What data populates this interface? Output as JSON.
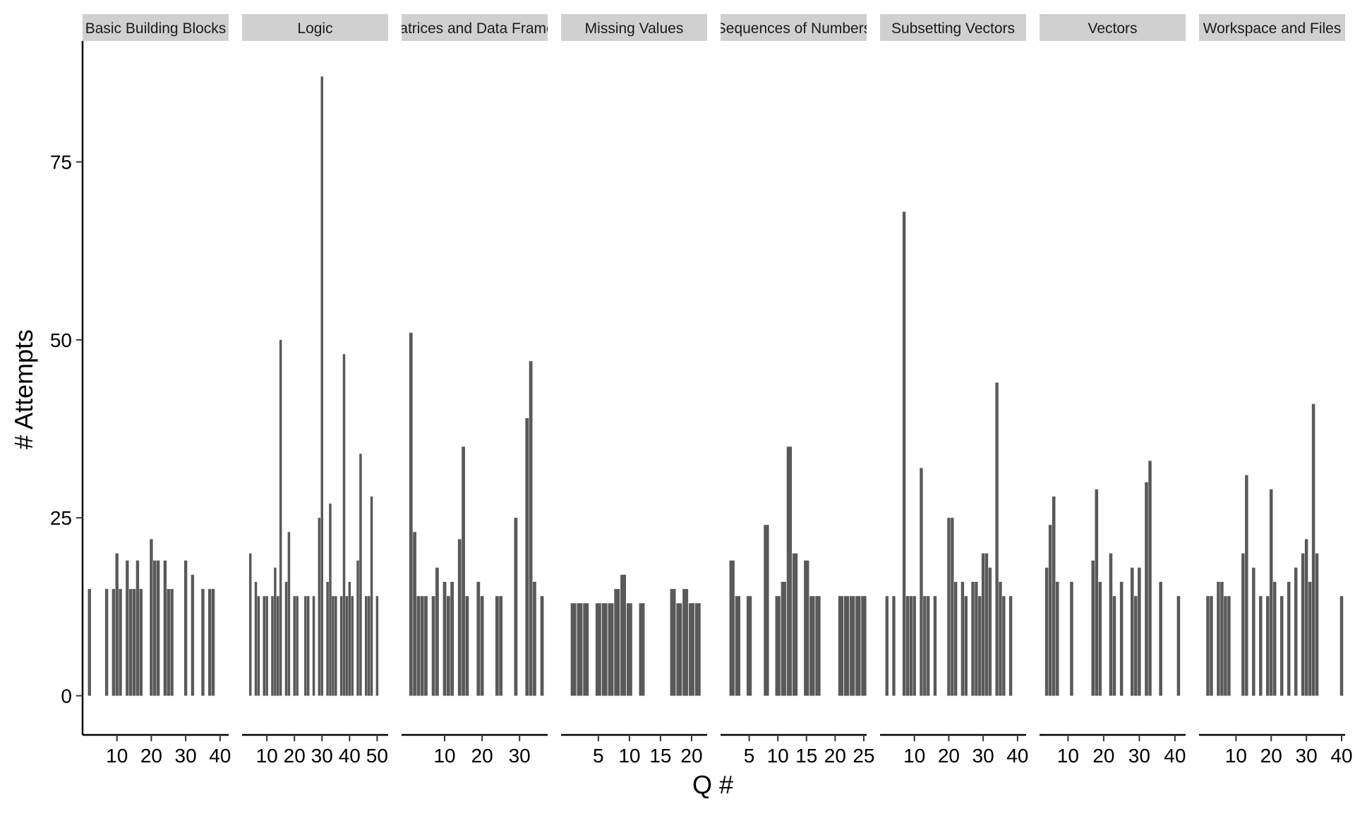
{
  "chart_data": {
    "type": "bar",
    "xlabel": "Q #",
    "ylabel": "# Attempts",
    "ylim": [
      -5.5,
      92
    ],
    "y_ticks": [
      0,
      25,
      50,
      75
    ],
    "bar_color": "#595959",
    "strip_color": "#d0d0d0",
    "facets": [
      {
        "label": "Basic Building Blocks",
        "xlim": [
          0,
          42.5
        ],
        "x_ticks": [
          10,
          20,
          30,
          40
        ],
        "bars": [
          {
            "x": 2,
            "y": 15
          },
          {
            "x": 7,
            "y": 15
          },
          {
            "x": 9,
            "y": 15
          },
          {
            "x": 10,
            "y": 20
          },
          {
            "x": 11,
            "y": 15
          },
          {
            "x": 13,
            "y": 19
          },
          {
            "x": 14,
            "y": 15
          },
          {
            "x": 15,
            "y": 15
          },
          {
            "x": 16,
            "y": 19
          },
          {
            "x": 17,
            "y": 15
          },
          {
            "x": 20,
            "y": 22
          },
          {
            "x": 21,
            "y": 19
          },
          {
            "x": 22,
            "y": 19
          },
          {
            "x": 24,
            "y": 19
          },
          {
            "x": 25,
            "y": 15
          },
          {
            "x": 26,
            "y": 15
          },
          {
            "x": 30,
            "y": 19
          },
          {
            "x": 32,
            "y": 17
          },
          {
            "x": 35,
            "y": 15
          },
          {
            "x": 37,
            "y": 15
          },
          {
            "x": 38,
            "y": 15
          }
        ]
      },
      {
        "label": "Logic",
        "xlim": [
          1,
          54
        ],
        "x_ticks": [
          10,
          20,
          30,
          40,
          50
        ],
        "bars": [
          {
            "x": 4,
            "y": 20
          },
          {
            "x": 6,
            "y": 16
          },
          {
            "x": 7,
            "y": 14
          },
          {
            "x": 9,
            "y": 14
          },
          {
            "x": 10,
            "y": 14
          },
          {
            "x": 12,
            "y": 14
          },
          {
            "x": 13,
            "y": 18
          },
          {
            "x": 14,
            "y": 14
          },
          {
            "x": 15,
            "y": 50
          },
          {
            "x": 17,
            "y": 16
          },
          {
            "x": 18,
            "y": 23
          },
          {
            "x": 20,
            "y": 14
          },
          {
            "x": 21,
            "y": 14
          },
          {
            "x": 24,
            "y": 14
          },
          {
            "x": 25,
            "y": 14
          },
          {
            "x": 27,
            "y": 14
          },
          {
            "x": 29,
            "y": 25
          },
          {
            "x": 30,
            "y": 87
          },
          {
            "x": 32,
            "y": 16
          },
          {
            "x": 33,
            "y": 27
          },
          {
            "x": 34,
            "y": 14
          },
          {
            "x": 35,
            "y": 14
          },
          {
            "x": 37,
            "y": 14
          },
          {
            "x": 38,
            "y": 48
          },
          {
            "x": 39,
            "y": 14
          },
          {
            "x": 40,
            "y": 16
          },
          {
            "x": 41,
            "y": 14
          },
          {
            "x": 43,
            "y": 19
          },
          {
            "x": 44,
            "y": 34
          },
          {
            "x": 46,
            "y": 14
          },
          {
            "x": 47,
            "y": 14
          },
          {
            "x": 48,
            "y": 28
          },
          {
            "x": 50,
            "y": 14
          }
        ]
      },
      {
        "label": "Matrices and Data Frames",
        "xlim": [
          -1.5,
          37.5
        ],
        "x_ticks": [
          10,
          20,
          30
        ],
        "bars": [
          {
            "x": 1,
            "y": 51
          },
          {
            "x": 2,
            "y": 23
          },
          {
            "x": 3,
            "y": 14
          },
          {
            "x": 4,
            "y": 14
          },
          {
            "x": 5,
            "y": 14
          },
          {
            "x": 7,
            "y": 14
          },
          {
            "x": 8,
            "y": 18
          },
          {
            "x": 10,
            "y": 16
          },
          {
            "x": 11,
            "y": 14
          },
          {
            "x": 12,
            "y": 16
          },
          {
            "x": 14,
            "y": 22
          },
          {
            "x": 15,
            "y": 35
          },
          {
            "x": 16,
            "y": 14
          },
          {
            "x": 19,
            "y": 16
          },
          {
            "x": 20,
            "y": 14
          },
          {
            "x": 24,
            "y": 14
          },
          {
            "x": 25,
            "y": 14
          },
          {
            "x": 29,
            "y": 25
          },
          {
            "x": 32,
            "y": 39
          },
          {
            "x": 33,
            "y": 47
          },
          {
            "x": 34,
            "y": 16
          },
          {
            "x": 36,
            "y": 14
          }
        ]
      },
      {
        "label": "Missing Values",
        "xlim": [
          -1,
          22.5
        ],
        "x_ticks": [
          5,
          10,
          15,
          20
        ],
        "bars": [
          {
            "x": 1,
            "y": 13
          },
          {
            "x": 2,
            "y": 13
          },
          {
            "x": 3,
            "y": 13
          },
          {
            "x": 5,
            "y": 13
          },
          {
            "x": 6,
            "y": 13
          },
          {
            "x": 7,
            "y": 13
          },
          {
            "x": 8,
            "y": 15
          },
          {
            "x": 9,
            "y": 17
          },
          {
            "x": 10,
            "y": 13
          },
          {
            "x": 12,
            "y": 13
          },
          {
            "x": 17,
            "y": 15
          },
          {
            "x": 18,
            "y": 13
          },
          {
            "x": 19,
            "y": 15
          },
          {
            "x": 20,
            "y": 13
          },
          {
            "x": 21,
            "y": 13
          }
        ]
      },
      {
        "label": "Sequences of Numbers",
        "xlim": [
          0,
          25.5
        ],
        "x_ticks": [
          5,
          10,
          15,
          20,
          25
        ],
        "bars": [
          {
            "x": 2,
            "y": 19
          },
          {
            "x": 3,
            "y": 14
          },
          {
            "x": 5,
            "y": 14
          },
          {
            "x": 8,
            "y": 24
          },
          {
            "x": 10,
            "y": 14
          },
          {
            "x": 11,
            "y": 16
          },
          {
            "x": 12,
            "y": 35
          },
          {
            "x": 13,
            "y": 20
          },
          {
            "x": 15,
            "y": 19
          },
          {
            "x": 16,
            "y": 14
          },
          {
            "x": 17,
            "y": 14
          },
          {
            "x": 21,
            "y": 14
          },
          {
            "x": 22,
            "y": 14
          },
          {
            "x": 23,
            "y": 14
          },
          {
            "x": 24,
            "y": 14
          },
          {
            "x": 25,
            "y": 14
          }
        ]
      },
      {
        "label": "Subsetting Vectors",
        "xlim": [
          0,
          42.5
        ],
        "x_ticks": [
          10,
          20,
          30,
          40
        ],
        "bars": [
          {
            "x": 2,
            "y": 14
          },
          {
            "x": 4,
            "y": 14
          },
          {
            "x": 7,
            "y": 68
          },
          {
            "x": 8,
            "y": 14
          },
          {
            "x": 9,
            "y": 14
          },
          {
            "x": 10,
            "y": 14
          },
          {
            "x": 12,
            "y": 32
          },
          {
            "x": 13,
            "y": 14
          },
          {
            "x": 14,
            "y": 14
          },
          {
            "x": 16,
            "y": 14
          },
          {
            "x": 20,
            "y": 25
          },
          {
            "x": 21,
            "y": 25
          },
          {
            "x": 22,
            "y": 16
          },
          {
            "x": 24,
            "y": 16
          },
          {
            "x": 25,
            "y": 14
          },
          {
            "x": 27,
            "y": 16
          },
          {
            "x": 28,
            "y": 16
          },
          {
            "x": 29,
            "y": 14
          },
          {
            "x": 30,
            "y": 20
          },
          {
            "x": 31,
            "y": 20
          },
          {
            "x": 32,
            "y": 18
          },
          {
            "x": 34,
            "y": 44
          },
          {
            "x": 35,
            "y": 16
          },
          {
            "x": 36,
            "y": 14
          },
          {
            "x": 38,
            "y": 14
          }
        ]
      },
      {
        "label": "Vectors",
        "xlim": [
          2,
          43
        ],
        "x_ticks": [
          10,
          20,
          30,
          40
        ],
        "bars": [
          {
            "x": 4,
            "y": 18
          },
          {
            "x": 5,
            "y": 24
          },
          {
            "x": 6,
            "y": 28
          },
          {
            "x": 7,
            "y": 16
          },
          {
            "x": 11,
            "y": 16
          },
          {
            "x": 17,
            "y": 19
          },
          {
            "x": 18,
            "y": 29
          },
          {
            "x": 19,
            "y": 16
          },
          {
            "x": 22,
            "y": 20
          },
          {
            "x": 23,
            "y": 14
          },
          {
            "x": 25,
            "y": 16
          },
          {
            "x": 28,
            "y": 18
          },
          {
            "x": 29,
            "y": 14
          },
          {
            "x": 30,
            "y": 18
          },
          {
            "x": 32,
            "y": 30
          },
          {
            "x": 33,
            "y": 33
          },
          {
            "x": 36,
            "y": 16
          },
          {
            "x": 41,
            "y": 14
          }
        ]
      },
      {
        "label": "Workspace and Files",
        "xlim": [
          -0.5,
          41
        ],
        "x_ticks": [
          10,
          20,
          30,
          40
        ],
        "bars": [
          {
            "x": 2,
            "y": 14
          },
          {
            "x": 3,
            "y": 14
          },
          {
            "x": 5,
            "y": 16
          },
          {
            "x": 6,
            "y": 16
          },
          {
            "x": 7,
            "y": 14
          },
          {
            "x": 8,
            "y": 14
          },
          {
            "x": 12,
            "y": 20
          },
          {
            "x": 13,
            "y": 31
          },
          {
            "x": 15,
            "y": 18
          },
          {
            "x": 17,
            "y": 14
          },
          {
            "x": 19,
            "y": 14
          },
          {
            "x": 20,
            "y": 29
          },
          {
            "x": 21,
            "y": 16
          },
          {
            "x": 23,
            "y": 14
          },
          {
            "x": 25,
            "y": 16
          },
          {
            "x": 27,
            "y": 18
          },
          {
            "x": 29,
            "y": 20
          },
          {
            "x": 30,
            "y": 22
          },
          {
            "x": 31,
            "y": 16
          },
          {
            "x": 32,
            "y": 41
          },
          {
            "x": 33,
            "y": 20
          },
          {
            "x": 40,
            "y": 14
          }
        ]
      }
    ]
  }
}
